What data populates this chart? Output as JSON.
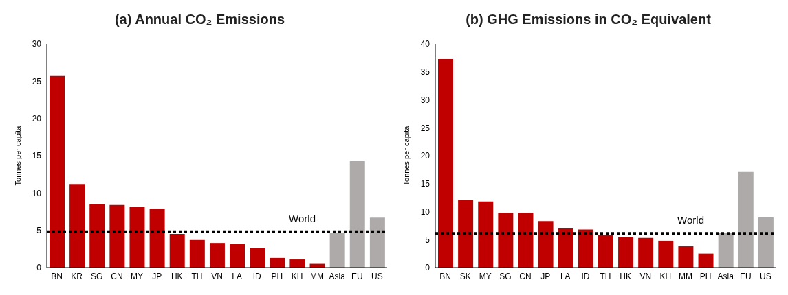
{
  "chart_data": [
    {
      "type": "bar",
      "title": "(a) Annual CO₂ Emissions",
      "ylabel": "Tonnes per capita",
      "categories": [
        "BN",
        "KR",
        "SG",
        "CN",
        "MY",
        "JP",
        "HK",
        "TH",
        "VN",
        "LA",
        "ID",
        "PH",
        "KH",
        "MM",
        "Asia",
        "EU",
        "US"
      ],
      "values": [
        25.7,
        11.2,
        8.5,
        8.4,
        8.2,
        7.9,
        4.5,
        3.7,
        3.3,
        3.2,
        2.6,
        1.3,
        1.1,
        0.5,
        4.7,
        14.3,
        6.7
      ],
      "colors": [
        "#c00000",
        "#c00000",
        "#c00000",
        "#c00000",
        "#c00000",
        "#c00000",
        "#c00000",
        "#c00000",
        "#c00000",
        "#c00000",
        "#c00000",
        "#c00000",
        "#c00000",
        "#c00000",
        "#aeaaaa",
        "#aeaaaa",
        "#aeaaaa"
      ],
      "ylim": [
        0,
        30
      ],
      "yticks": [
        0,
        5,
        10,
        15,
        20,
        25,
        30
      ],
      "grid": false,
      "legend": false,
      "ref_lines": [
        {
          "axis": "y",
          "value": 4.8,
          "label": "World",
          "color": "#000000",
          "line_style": "dotted"
        }
      ]
    },
    {
      "type": "bar",
      "title": "(b) GHG Emissions in CO₂ Equivalent",
      "ylabel": "Tonnes per capita",
      "categories": [
        "BN",
        "SK",
        "MY",
        "SG",
        "CN",
        "JP",
        "LA",
        "ID",
        "TH",
        "HK",
        "VN",
        "KH",
        "MM",
        "PH",
        "Asia",
        "EU",
        "US"
      ],
      "values": [
        37.3,
        12.1,
        11.8,
        9.8,
        9.8,
        8.3,
        7.0,
        6.8,
        5.8,
        5.4,
        5.3,
        4.8,
        3.8,
        2.5,
        6.2,
        17.2,
        9.0
      ],
      "colors": [
        "#c00000",
        "#c00000",
        "#c00000",
        "#c00000",
        "#c00000",
        "#c00000",
        "#c00000",
        "#c00000",
        "#c00000",
        "#c00000",
        "#c00000",
        "#c00000",
        "#c00000",
        "#c00000",
        "#aeaaaa",
        "#aeaaaa",
        "#aeaaaa"
      ],
      "ylim": [
        0,
        40
      ],
      "yticks": [
        0,
        5,
        10,
        15,
        20,
        25,
        30,
        35,
        40
      ],
      "grid": false,
      "legend": false,
      "ref_lines": [
        {
          "axis": "y",
          "value": 6.1,
          "label": "World",
          "color": "#000000",
          "line_style": "dotted"
        }
      ]
    }
  ]
}
